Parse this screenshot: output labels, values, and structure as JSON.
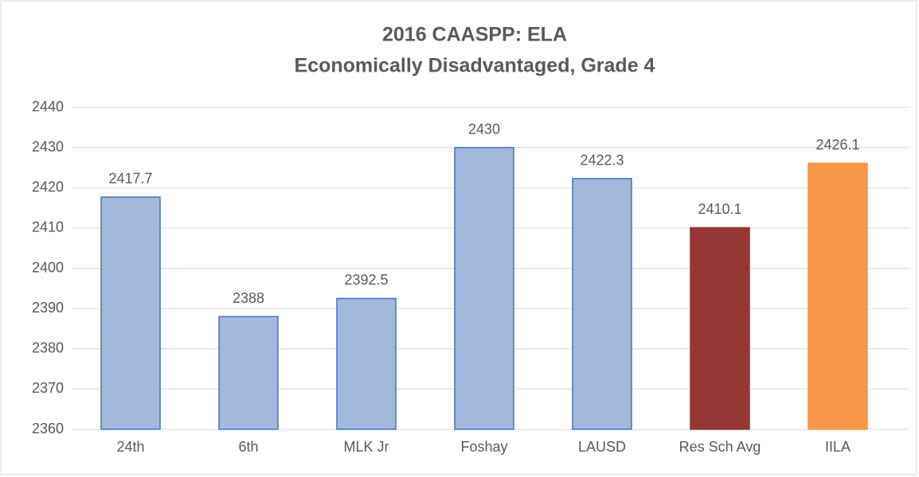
{
  "chart_data": {
    "type": "bar",
    "title": "2016 CAASPP: ELA",
    "subtitle": "Economically Disadvantaged, Grade 4",
    "categories": [
      "24th",
      "6th",
      "MLK Jr",
      "Foshay",
      "LAUSD",
      "Res Sch Avg",
      "IILA"
    ],
    "values": [
      2417.7,
      2388,
      2392.5,
      2430,
      2422.3,
      2410.1,
      2426.1
    ],
    "colors": [
      "#a2b8dd",
      "#a2b8dd",
      "#a2b8dd",
      "#a2b8dd",
      "#a2b8dd",
      "#943634",
      "#f79646"
    ],
    "ylim": [
      2360,
      2440
    ],
    "yticks": [
      2360,
      2370,
      2380,
      2390,
      2400,
      2410,
      2420,
      2430,
      2440
    ],
    "grid": true
  }
}
